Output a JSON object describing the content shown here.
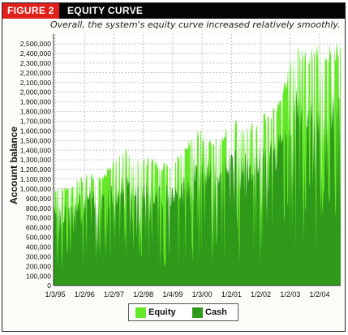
{
  "figure": {
    "tag": "FIGURE 2",
    "title": "EQUITY CURVE"
  },
  "chart_data": {
    "type": "area",
    "subtitle": "Overall, the system's equity curve increased relatively smoothly.",
    "ylabel": "Account balance",
    "xlabel": "",
    "ylim": [
      0,
      2600000
    ],
    "yticks": [
      0,
      100000,
      200000,
      300000,
      400000,
      500000,
      600000,
      700000,
      800000,
      900000,
      1000000,
      1100000,
      1200000,
      1300000,
      1400000,
      1500000,
      1600000,
      1700000,
      1800000,
      1900000,
      2000000,
      2100000,
      2200000,
      2300000,
      2400000,
      2500000
    ],
    "ytick_labels": [
      "0",
      "100,000",
      "200,000",
      "300,000",
      "400,000",
      "500,000",
      "600,000",
      "700,000",
      "800,000",
      "900,000",
      "1,000,000",
      "1,100,000",
      "1,200,000",
      "1,300,000",
      "1,400,000",
      "1,500,000",
      "1,600,000",
      "1,700,000",
      "1,800,000",
      "1,900,000",
      "2,000,000",
      "2,100,000",
      "2,200,000",
      "2,300,000",
      "2,400,000",
      "2,500,000"
    ],
    "xtick_labels": [
      "1/3/95",
      "1/2/96",
      "1/2/97",
      "1/2/98",
      "1/4/99",
      "1/3/00",
      "1/2/01",
      "1/2/02",
      "1/2/03",
      "1/2/04"
    ],
    "grid": true,
    "legend_position": "bottom",
    "series": [
      {
        "name": "Equity",
        "color": "#66e82a",
        "x": [
          "1/3/95",
          "7/95",
          "1/2/96",
          "7/96",
          "1/2/97",
          "7/97",
          "10/97",
          "1/2/98",
          "7/98",
          "1/4/99",
          "7/99",
          "1/3/00",
          "4/00",
          "7/00",
          "1/2/01",
          "4/01",
          "7/01",
          "1/2/02",
          "7/02",
          "1/2/03",
          "4/03",
          "7/03",
          "1/2/04",
          "7/04",
          "12/04"
        ],
        "values": [
          1000000,
          1030000,
          1120000,
          1160000,
          1160000,
          1300000,
          1420000,
          1360000,
          1330000,
          1270000,
          1300000,
          1450000,
          1650000,
          1550000,
          1550000,
          1760000,
          1680000,
          1700000,
          1840000,
          1950000,
          2500000,
          2450000,
          2520000,
          2500000,
          2550000
        ]
      },
      {
        "name": "Cash",
        "color": "#2f9a1a",
        "x": [
          "1/3/95",
          "7/95",
          "1/2/96",
          "7/96",
          "1/2/97",
          "7/97",
          "10/97",
          "1/2/98",
          "7/98",
          "1/4/99",
          "7/99",
          "1/3/00",
          "4/00",
          "7/00",
          "1/2/01",
          "4/01",
          "7/01",
          "1/2/02",
          "7/02",
          "1/2/03",
          "4/03",
          "7/03",
          "1/2/04",
          "7/04",
          "12/04"
        ],
        "values": [
          850000,
          870000,
          950000,
          1000000,
          1000000,
          1100000,
          1150000,
          1150000,
          1100000,
          1050000,
          1050000,
          1150000,
          1400000,
          1300000,
          1300000,
          1500000,
          1400000,
          1450000,
          1550000,
          1600000,
          2100000,
          2000000,
          2050000,
          2000000,
          2050000
        ]
      }
    ]
  }
}
